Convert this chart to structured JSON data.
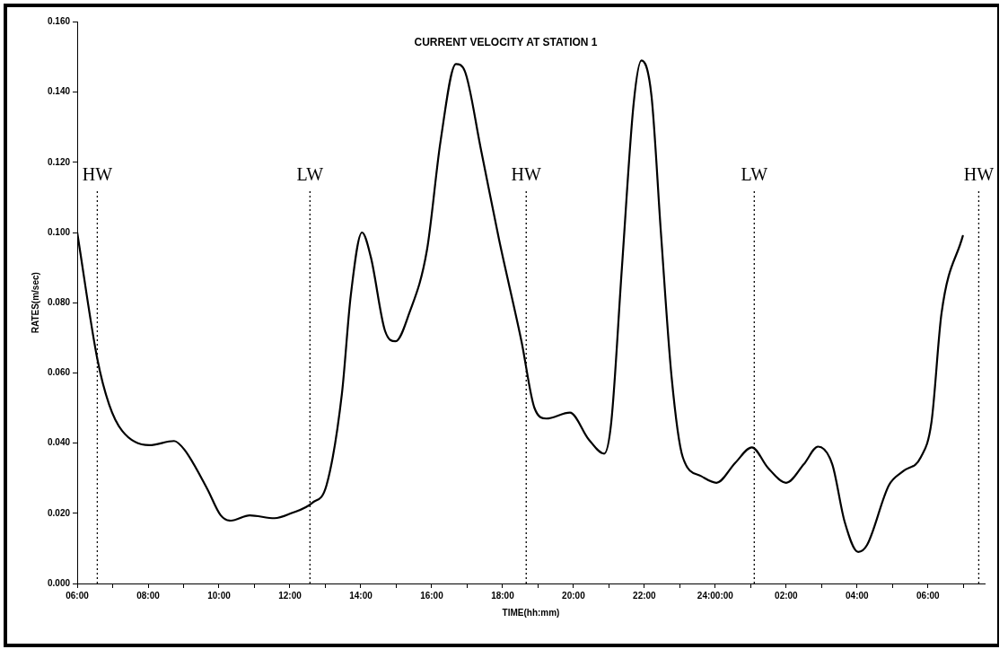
{
  "chart_data": {
    "type": "line",
    "title": "CURRENT VELOCITY AT STATION 1",
    "xlabel": "TIME(hh:mm)",
    "ylabel": "RATES(m/sec)",
    "x": [
      "2000-01-01T06:00",
      "2000-01-01T06:34",
      "2000-01-01T06:54",
      "2000-01-01T07:16",
      "2000-01-01T08:02",
      "2000-01-01T08:44",
      "2000-01-01T09:02",
      "2000-01-01T09:40",
      "2000-01-01T10:03",
      "2000-01-01T10:20",
      "2000-01-01T10:52",
      "2000-01-01T11:34",
      "2000-01-01T12:02",
      "2000-01-01T12:38",
      "2000-01-01T13:02",
      "2000-01-01T13:28",
      "2000-01-01T13:43",
      "2000-01-01T14:02",
      "2000-01-01T14:17",
      "2000-01-01T14:41",
      "2000-01-01T14:59",
      "2000-01-01T15:22",
      "2000-01-01T15:52",
      "2000-01-01T16:15",
      "2000-01-01T16:41",
      "2000-01-01T16:56",
      "2000-01-01T17:23",
      "2000-01-01T17:54",
      "2000-01-01T18:32",
      "2000-01-01T18:54",
      "2000-01-01T19:14",
      "2000-01-01T19:54",
      "2000-01-01T20:26",
      "2000-01-01T20:52",
      "2000-01-01T21:04",
      "2000-01-01T21:22",
      "2000-01-01T21:42",
      "2000-01-01T21:55",
      "2000-01-01T22:12",
      "2000-01-01T22:28",
      "2000-01-01T22:46",
      "2000-01-01T23:05",
      "2000-01-01T23:36",
      "2000-01-02T00:02",
      "2000-01-02T00:34",
      "2000-01-02T01:02",
      "2000-01-02T01:29",
      "2000-01-02T02:00",
      "2000-01-02T02:30",
      "2000-01-02T02:54",
      "2000-01-02T03:18",
      "2000-01-02T03:39",
      "2000-01-02T04:02",
      "2000-01-02T04:17",
      "2000-01-02T04:54",
      "2000-01-02T05:18",
      "2000-01-02T05:48",
      "2000-01-02T06:06",
      "2000-01-02T06:23",
      "2000-01-02T06:59"
    ],
    "series": [
      {
        "color": "#000000",
        "values": [
          0.1,
          0.064,
          0.051,
          0.0435,
          0.0394,
          0.0406,
          0.038,
          0.027,
          0.0194,
          0.0179,
          0.0194,
          0.0186,
          0.02,
          0.023,
          0.028,
          0.054,
          0.082,
          0.1,
          0.093,
          0.072,
          0.069,
          0.077,
          0.095,
          0.126,
          0.148,
          0.146,
          0.124,
          0.098,
          0.069,
          0.05,
          0.047,
          0.0487,
          0.041,
          0.037,
          0.046,
          0.09,
          0.137,
          0.149,
          0.139,
          0.1,
          0.059,
          0.036,
          0.0306,
          0.0287,
          0.0344,
          0.0388,
          0.033,
          0.0287,
          0.034,
          0.039,
          0.034,
          0.0176,
          0.009,
          0.011,
          0.028,
          0.032,
          0.036,
          0.046,
          0.077,
          0.099
        ]
      }
    ],
    "xlim": [
      "2000-01-01T06:00",
      "2000-01-02T07:36"
    ],
    "xticks": [
      {
        "value": "2000-01-01T06:00",
        "label": "06:00"
      },
      {
        "value": "2000-01-01T07:00",
        "label": null
      },
      {
        "value": "2000-01-01T08:00",
        "label": "08:00"
      },
      {
        "value": "2000-01-01T09:00",
        "label": null
      },
      {
        "value": "2000-01-01T10:00",
        "label": "10:00"
      },
      {
        "value": "2000-01-01T11:00",
        "label": null
      },
      {
        "value": "2000-01-01T12:00",
        "label": "12:00"
      },
      {
        "value": "2000-01-01T13:00",
        "label": null
      },
      {
        "value": "2000-01-01T14:00",
        "label": "14:00"
      },
      {
        "value": "2000-01-01T15:00",
        "label": null
      },
      {
        "value": "2000-01-01T16:00",
        "label": "16:00"
      },
      {
        "value": "2000-01-01T17:00",
        "label": null
      },
      {
        "value": "2000-01-01T18:00",
        "label": "18:00"
      },
      {
        "value": "2000-01-01T19:00",
        "label": null
      },
      {
        "value": "2000-01-01T20:00",
        "label": "20:00"
      },
      {
        "value": "2000-01-01T21:00",
        "label": null
      },
      {
        "value": "2000-01-01T22:00",
        "label": "22:00"
      },
      {
        "value": "2000-01-01T23:00",
        "label": null
      },
      {
        "value": "2000-01-02T00:00",
        "label": "24:00:00"
      },
      {
        "value": "2000-01-02T01:00",
        "label": null
      },
      {
        "value": "2000-01-02T02:00",
        "label": "02:00"
      },
      {
        "value": "2000-01-02T03:00",
        "label": null
      },
      {
        "value": "2000-01-02T04:00",
        "label": "04:00"
      },
      {
        "value": "2000-01-02T05:00",
        "label": null
      },
      {
        "value": "2000-01-02T06:00",
        "label": "06:00"
      },
      {
        "value": "2000-01-02T07:00",
        "label": null
      }
    ],
    "ylim": [
      0,
      0.16
    ],
    "yticks": [
      {
        "value": 0,
        "label": "0.000"
      },
      {
        "value": 0.02,
        "label": "0.020"
      },
      {
        "value": 0.04,
        "label": "0.040"
      },
      {
        "value": 0.06,
        "label": "0.060"
      },
      {
        "value": 0.08,
        "label": "0.080"
      },
      {
        "value": 0.1,
        "label": "0.100"
      },
      {
        "value": 0.12,
        "label": "0.120"
      },
      {
        "value": 0.14,
        "label": "0.140"
      },
      {
        "value": 0.16,
        "label": "0.160"
      }
    ],
    "ref_lines": [
      {
        "axis": "x",
        "value": "2000-01-01T06:34",
        "label": "HW",
        "line_style": "dotted"
      },
      {
        "axis": "x",
        "value": "2000-01-01T12:34",
        "label": "LW",
        "line_style": "dotted"
      },
      {
        "axis": "x",
        "value": "2000-01-01T18:40",
        "label": "HW",
        "line_style": "dotted"
      },
      {
        "axis": "x",
        "value": "2000-01-02T01:06",
        "label": "LW",
        "line_style": "dotted"
      },
      {
        "axis": "x",
        "value": "2000-01-02T07:26",
        "label": "HW",
        "line_style": "dotted"
      }
    ],
    "grid": false,
    "legend": false,
    "marker": "none",
    "line_style": "solid"
  }
}
